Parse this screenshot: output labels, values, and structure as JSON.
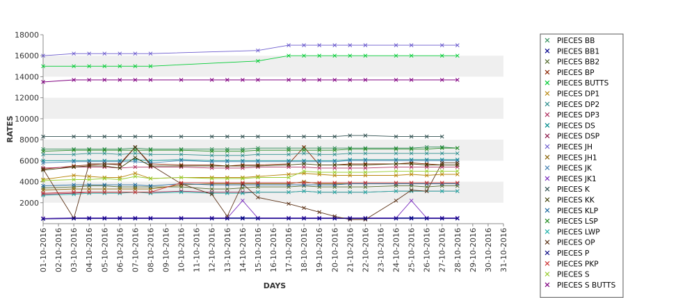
{
  "chart_data": {
    "type": "line",
    "xlabel": "DAYS",
    "ylabel": "RATES",
    "ylim": [
      0,
      18000
    ],
    "yticks": [
      2000,
      4000,
      6000,
      8000,
      10000,
      12000,
      14000,
      16000,
      18000
    ],
    "grid": "alternating horizontal bands",
    "legend_position": "right",
    "categories": [
      "01-10-2016",
      "02-10-2016",
      "03-10-2016",
      "04-10-2016",
      "05-10-2016",
      "06-10-2016",
      "07-10-2016",
      "08-10-2016",
      "09-10-2016",
      "10-10-2016",
      "11-10-2016",
      "12-10-2016",
      "13-10-2016",
      "14-10-2016",
      "15-10-2016",
      "16-10-2016",
      "17-10-2016",
      "18-10-2016",
      "19-10-2016",
      "20-10-2016",
      "21-10-2016",
      "22-10-2016",
      "23-10-2016",
      "24-10-2016",
      "25-10-2016",
      "26-10-2016",
      "27-10-2016",
      "28-10-2016",
      "29-10-2016",
      "30-10-2016",
      "31-10-2016"
    ],
    "series": [
      {
        "name": "PIECES BB",
        "color": "#2e8b57",
        "values": [
          7100,
          null,
          7100,
          7100,
          7100,
          7100,
          7200,
          7100,
          null,
          7100,
          null,
          7100,
          7100,
          7100,
          7200,
          null,
          7200,
          7200,
          7200,
          7200,
          7200,
          7200,
          null,
          7200,
          7200,
          7300,
          7300,
          7200,
          null,
          null,
          null
        ]
      },
      {
        "name": "PIECES BB1",
        "color": "#00008b",
        "values": [
          500,
          null,
          550,
          550,
          550,
          550,
          550,
          550,
          null,
          550,
          null,
          550,
          550,
          550,
          550,
          null,
          550,
          550,
          550,
          550,
          550,
          550,
          null,
          550,
          550,
          550,
          550,
          550,
          null,
          null,
          null
        ]
      },
      {
        "name": "PIECES BB2",
        "color": "#556b2f",
        "values": [
          3400,
          null,
          3500,
          3600,
          3600,
          3500,
          3500,
          3500,
          null,
          3500,
          null,
          3300,
          3300,
          3400,
          3500,
          null,
          3500,
          3600,
          3500,
          3500,
          3500,
          3500,
          null,
          3600,
          3600,
          3500,
          3600,
          3600,
          null,
          null,
          null
        ]
      },
      {
        "name": "PIECES BP",
        "color": "#8b2500",
        "values": [
          5200,
          null,
          5500,
          5600,
          5700,
          5700,
          7300,
          5700,
          null,
          5600,
          null,
          5600,
          5500,
          5600,
          5600,
          null,
          5700,
          7300,
          5600,
          5600,
          5700,
          5700,
          null,
          5700,
          5800,
          5700,
          5600,
          5600,
          null,
          null,
          null
        ]
      },
      {
        "name": "PIECES BUTTS",
        "color": "#00cc33",
        "values": [
          15000,
          null,
          15000,
          15000,
          15000,
          15000,
          15000,
          15000,
          null,
          null,
          null,
          null,
          null,
          null,
          15500,
          null,
          16000,
          16000,
          16000,
          16000,
          16000,
          16000,
          null,
          16000,
          16000,
          null,
          16000,
          16000,
          null,
          null,
          null
        ]
      },
      {
        "name": "PIECES DP1",
        "color": "#b8860b",
        "values": [
          4200,
          null,
          4600,
          4500,
          4400,
          4400,
          4800,
          4300,
          null,
          4400,
          null,
          4400,
          4400,
          4400,
          4500,
          null,
          4700,
          4800,
          4700,
          4600,
          4600,
          4600,
          null,
          4600,
          4700,
          4600,
          4700,
          4700,
          null,
          null,
          null
        ]
      },
      {
        "name": "PIECES DP2",
        "color": "#2f8f8f",
        "values": [
          6600,
          null,
          6600,
          6700,
          6700,
          6600,
          6700,
          6600,
          null,
          6600,
          null,
          6500,
          6500,
          6500,
          6600,
          null,
          6600,
          6700,
          6600,
          6600,
          6700,
          6700,
          null,
          6700,
          6700,
          6700,
          6700,
          6700,
          null,
          null,
          null
        ]
      },
      {
        "name": "PIECES DP3",
        "color": "#b03060",
        "values": [
          5300,
          null,
          5400,
          5400,
          5400,
          5300,
          5400,
          5400,
          null,
          5400,
          null,
          5300,
          5300,
          5300,
          5400,
          null,
          5400,
          5400,
          5300,
          5300,
          5300,
          5300,
          null,
          5400,
          5400,
          5400,
          5400,
          5400,
          null,
          null,
          null
        ]
      },
      {
        "name": "PIECES DS",
        "color": "#008b8b",
        "values": [
          6000,
          null,
          6000,
          6000,
          6000,
          6000,
          6100,
          6000,
          null,
          6100,
          null,
          6000,
          6000,
          6000,
          6000,
          null,
          6000,
          6000,
          6000,
          6000,
          6100,
          6100,
          null,
          6100,
          6100,
          6100,
          6100,
          6100,
          null,
          null,
          null
        ]
      },
      {
        "name": "PIECES DSP",
        "color": "#8b1a4a",
        "values": [
          2800,
          null,
          2900,
          3000,
          3000,
          3000,
          3000,
          3000,
          null,
          3100,
          null,
          3000,
          3000,
          3000,
          3000,
          null,
          3000,
          3100,
          3000,
          3000,
          3000,
          3000,
          null,
          3100,
          3100,
          3100,
          3100,
          3100,
          null,
          null,
          null
        ]
      },
      {
        "name": "PIECES JH",
        "color": "#6a5acd",
        "values": [
          16000,
          null,
          16200,
          16200,
          16200,
          16200,
          16200,
          16200,
          null,
          null,
          null,
          null,
          null,
          null,
          16500,
          null,
          17000,
          17000,
          17000,
          17000,
          17000,
          17000,
          null,
          17000,
          17000,
          null,
          17000,
          17000,
          null,
          null,
          null
        ]
      },
      {
        "name": "PIECES JH1",
        "color": "#8b6508",
        "values": [
          3200,
          null,
          3300,
          3300,
          3300,
          3300,
          3300,
          3300,
          null,
          3700,
          null,
          3800,
          3800,
          3800,
          3800,
          null,
          3800,
          4000,
          3800,
          3800,
          3800,
          3800,
          null,
          3800,
          3800,
          3800,
          3800,
          3800,
          null,
          null,
          null
        ]
      },
      {
        "name": "PIECES JK",
        "color": "#4682b4",
        "values": [
          5800,
          null,
          5900,
          5900,
          5900,
          5900,
          5900,
          5800,
          null,
          6000,
          null,
          5900,
          5900,
          5900,
          5900,
          null,
          5900,
          5900,
          5900,
          5900,
          6000,
          6000,
          null,
          6000,
          6000,
          6000,
          6000,
          6000,
          null,
          null,
          null
        ]
      },
      {
        "name": "PIECES JK1",
        "color": "#7b2fbf",
        "values": [
          500,
          null,
          520,
          520,
          520,
          520,
          520,
          520,
          null,
          520,
          null,
          520,
          520,
          2200,
          520,
          null,
          520,
          520,
          520,
          520,
          520,
          520,
          null,
          520,
          2200,
          520,
          520,
          520,
          null,
          null,
          null
        ]
      },
      {
        "name": "PIECES K",
        "color": "#2f4f4f",
        "values": [
          8300,
          null,
          8300,
          8300,
          8300,
          8300,
          8300,
          8300,
          null,
          8300,
          null,
          8300,
          8300,
          8300,
          8300,
          null,
          8300,
          8300,
          8300,
          8300,
          8400,
          8400,
          null,
          8300,
          8300,
          8300,
          8300,
          null,
          null,
          null,
          null
        ]
      },
      {
        "name": "PIECES KK",
        "color": "#3b3b00",
        "values": [
          5100,
          null,
          5400,
          5500,
          5500,
          5300,
          6300,
          5500,
          null,
          5500,
          null,
          5500,
          5500,
          5500,
          5500,
          null,
          5600,
          5700,
          5600,
          5600,
          5600,
          5600,
          null,
          5700,
          5700,
          5600,
          5600,
          5600,
          null,
          null,
          null
        ]
      },
      {
        "name": "PIECES KLP",
        "color": "#1e6aa0",
        "values": [
          3600,
          null,
          3700,
          3700,
          3700,
          3700,
          3700,
          3600,
          null,
          3800,
          null,
          3700,
          3700,
          3700,
          3700,
          null,
          3700,
          3700,
          3700,
          3700,
          3800,
          3800,
          null,
          3800,
          3800,
          3800,
          3800,
          3800,
          null,
          null,
          null
        ]
      },
      {
        "name": "PIECES LSP",
        "color": "#228b22",
        "values": [
          6900,
          null,
          7000,
          7000,
          7000,
          7000,
          7000,
          7000,
          null,
          7000,
          null,
          6900,
          6900,
          6900,
          7000,
          null,
          7000,
          7000,
          7000,
          7000,
          7100,
          7100,
          null,
          7100,
          7100,
          7100,
          7200,
          7200,
          null,
          null,
          null
        ]
      },
      {
        "name": "PIECES LWP",
        "color": "#20b2aa",
        "values": [
          2700,
          null,
          2800,
          2900,
          2900,
          2900,
          3000,
          2900,
          null,
          3000,
          null,
          2900,
          2900,
          2900,
          3000,
          null,
          3000,
          3100,
          3000,
          3000,
          3000,
          3000,
          null,
          3100,
          3100,
          3100,
          3100,
          3100,
          null,
          null,
          null
        ]
      },
      {
        "name": "PIECES OP",
        "color": "#5c3317",
        "values": [
          5200,
          null,
          500,
          5700,
          5700,
          5600,
          7300,
          5600,
          null,
          3800,
          null,
          2800,
          700,
          3800,
          2500,
          null,
          1900,
          1500,
          1100,
          700,
          400,
          400,
          null,
          2200,
          3200,
          3100,
          5800,
          5800,
          null,
          null,
          null
        ]
      },
      {
        "name": "PIECES P",
        "color": "#000080",
        "values": [
          450,
          null,
          480,
          480,
          480,
          480,
          480,
          480,
          null,
          480,
          null,
          480,
          480,
          480,
          480,
          null,
          480,
          480,
          480,
          480,
          480,
          480,
          null,
          480,
          480,
          480,
          480,
          480,
          null,
          null,
          null
        ]
      },
      {
        "name": "PIECES PKP",
        "color": "#cd3333",
        "values": [
          2900,
          null,
          3000,
          3000,
          3000,
          3000,
          3000,
          3000,
          null,
          3900,
          null,
          3900,
          3900,
          3900,
          3900,
          null,
          3900,
          3900,
          3900,
          3900,
          3900,
          3900,
          null,
          3900,
          3900,
          3900,
          3900,
          3900,
          null,
          null,
          null
        ]
      },
      {
        "name": "PIECES S",
        "color": "#9acd32",
        "values": [
          4100,
          null,
          4200,
          4200,
          4300,
          4200,
          4500,
          4300,
          null,
          4400,
          null,
          4300,
          4300,
          4300,
          4400,
          null,
          4400,
          5000,
          4900,
          4900,
          4900,
          4900,
          null,
          5000,
          5000,
          5000,
          5000,
          5000,
          null,
          null,
          null
        ]
      },
      {
        "name": "PIECES S BUTTS",
        "color": "#800080",
        "values": [
          13500,
          null,
          13700,
          13700,
          13700,
          13700,
          13700,
          13700,
          null,
          13700,
          null,
          13700,
          13700,
          13700,
          13700,
          null,
          13700,
          13700,
          13700,
          13700,
          13700,
          13700,
          null,
          13700,
          13700,
          null,
          13700,
          13700,
          null,
          null,
          null
        ]
      }
    ]
  }
}
